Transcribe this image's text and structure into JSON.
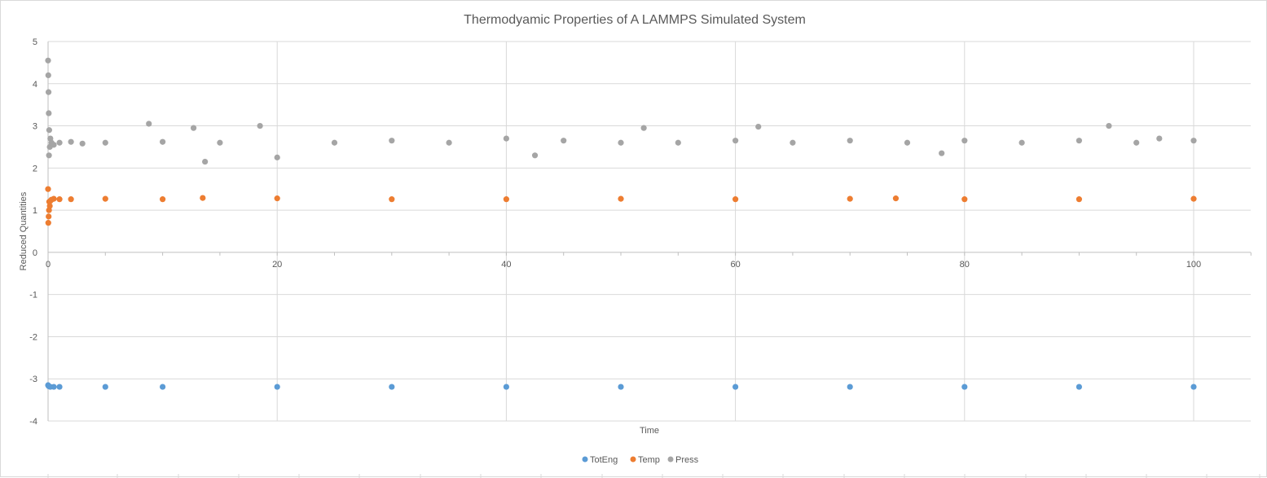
{
  "chart_data": {
    "type": "scatter",
    "title": "Thermodyamic Properties of A LAMMPS Simulated System",
    "xlabel": "Time",
    "ylabel": "Reduced Quantities",
    "xlim": [
      0,
      105
    ],
    "ylim": [
      -4,
      5
    ],
    "xticks": [
      0,
      20,
      40,
      60,
      80,
      100
    ],
    "yticks": [
      -4,
      -3,
      -2,
      -1,
      0,
      1,
      2,
      3,
      4,
      5
    ],
    "x_tick_labels": [
      "0",
      "20",
      "40",
      "60",
      "80",
      "100"
    ],
    "y_tick_labels": [
      "-4",
      "-3",
      "-2",
      "-1",
      "0",
      "1",
      "2",
      "3",
      "4",
      "5"
    ],
    "grid": true,
    "legend_position": "bottom",
    "series": [
      {
        "name": "TotEng",
        "color": "#5b9bd5",
        "x": [
          0,
          0.05,
          0.1,
          0.2,
          0.5,
          1,
          5,
          10,
          20,
          30,
          40,
          50,
          60,
          70,
          80,
          90,
          100
        ],
        "y": [
          -3.15,
          -3.17,
          -3.18,
          -3.19,
          -3.19,
          -3.19,
          -3.19,
          -3.19,
          -3.19,
          -3.19,
          -3.19,
          -3.19,
          -3.19,
          -3.19,
          -3.19,
          -3.19,
          -3.19
        ]
      },
      {
        "name": "Temp",
        "color": "#ed7d31",
        "x": [
          0,
          0.02,
          0.05,
          0.08,
          0.1,
          0.15,
          0.2,
          0.3,
          0.5,
          1,
          2,
          5,
          10,
          13.5,
          20,
          30,
          40,
          50,
          60,
          70,
          74,
          80,
          90,
          100
        ],
        "y": [
          1.5,
          0.7,
          0.85,
          1.0,
          1.2,
          1.1,
          1.22,
          1.25,
          1.27,
          1.26,
          1.26,
          1.27,
          1.26,
          1.29,
          1.28,
          1.26,
          1.26,
          1.27,
          1.26,
          1.27,
          1.28,
          1.26,
          1.26,
          1.27
        ]
      },
      {
        "name": "Press",
        "color": "#a5a5a5",
        "x": [
          0,
          0.02,
          0.04,
          0.06,
          0.08,
          0.1,
          0.15,
          0.2,
          0.3,
          0.5,
          1,
          2,
          3,
          5,
          8.8,
          10,
          12.7,
          13.7,
          15,
          18.5,
          20,
          25,
          30,
          35,
          40,
          42.5,
          45,
          50,
          52,
          55,
          60,
          62,
          65,
          70,
          75,
          78,
          80,
          85,
          90,
          92.6,
          95,
          97,
          100
        ],
        "y": [
          4.55,
          4.2,
          3.8,
          3.3,
          2.3,
          2.9,
          2.5,
          2.7,
          2.6,
          2.55,
          2.6,
          2.62,
          2.58,
          2.6,
          3.05,
          2.62,
          2.95,
          2.15,
          2.6,
          3.0,
          2.25,
          2.6,
          2.65,
          2.6,
          2.7,
          2.3,
          2.65,
          2.6,
          2.95,
          2.6,
          2.65,
          2.98,
          2.6,
          2.65,
          2.6,
          2.35,
          2.65,
          2.6,
          2.65,
          3.0,
          2.6,
          2.7,
          2.65
        ]
      }
    ]
  }
}
